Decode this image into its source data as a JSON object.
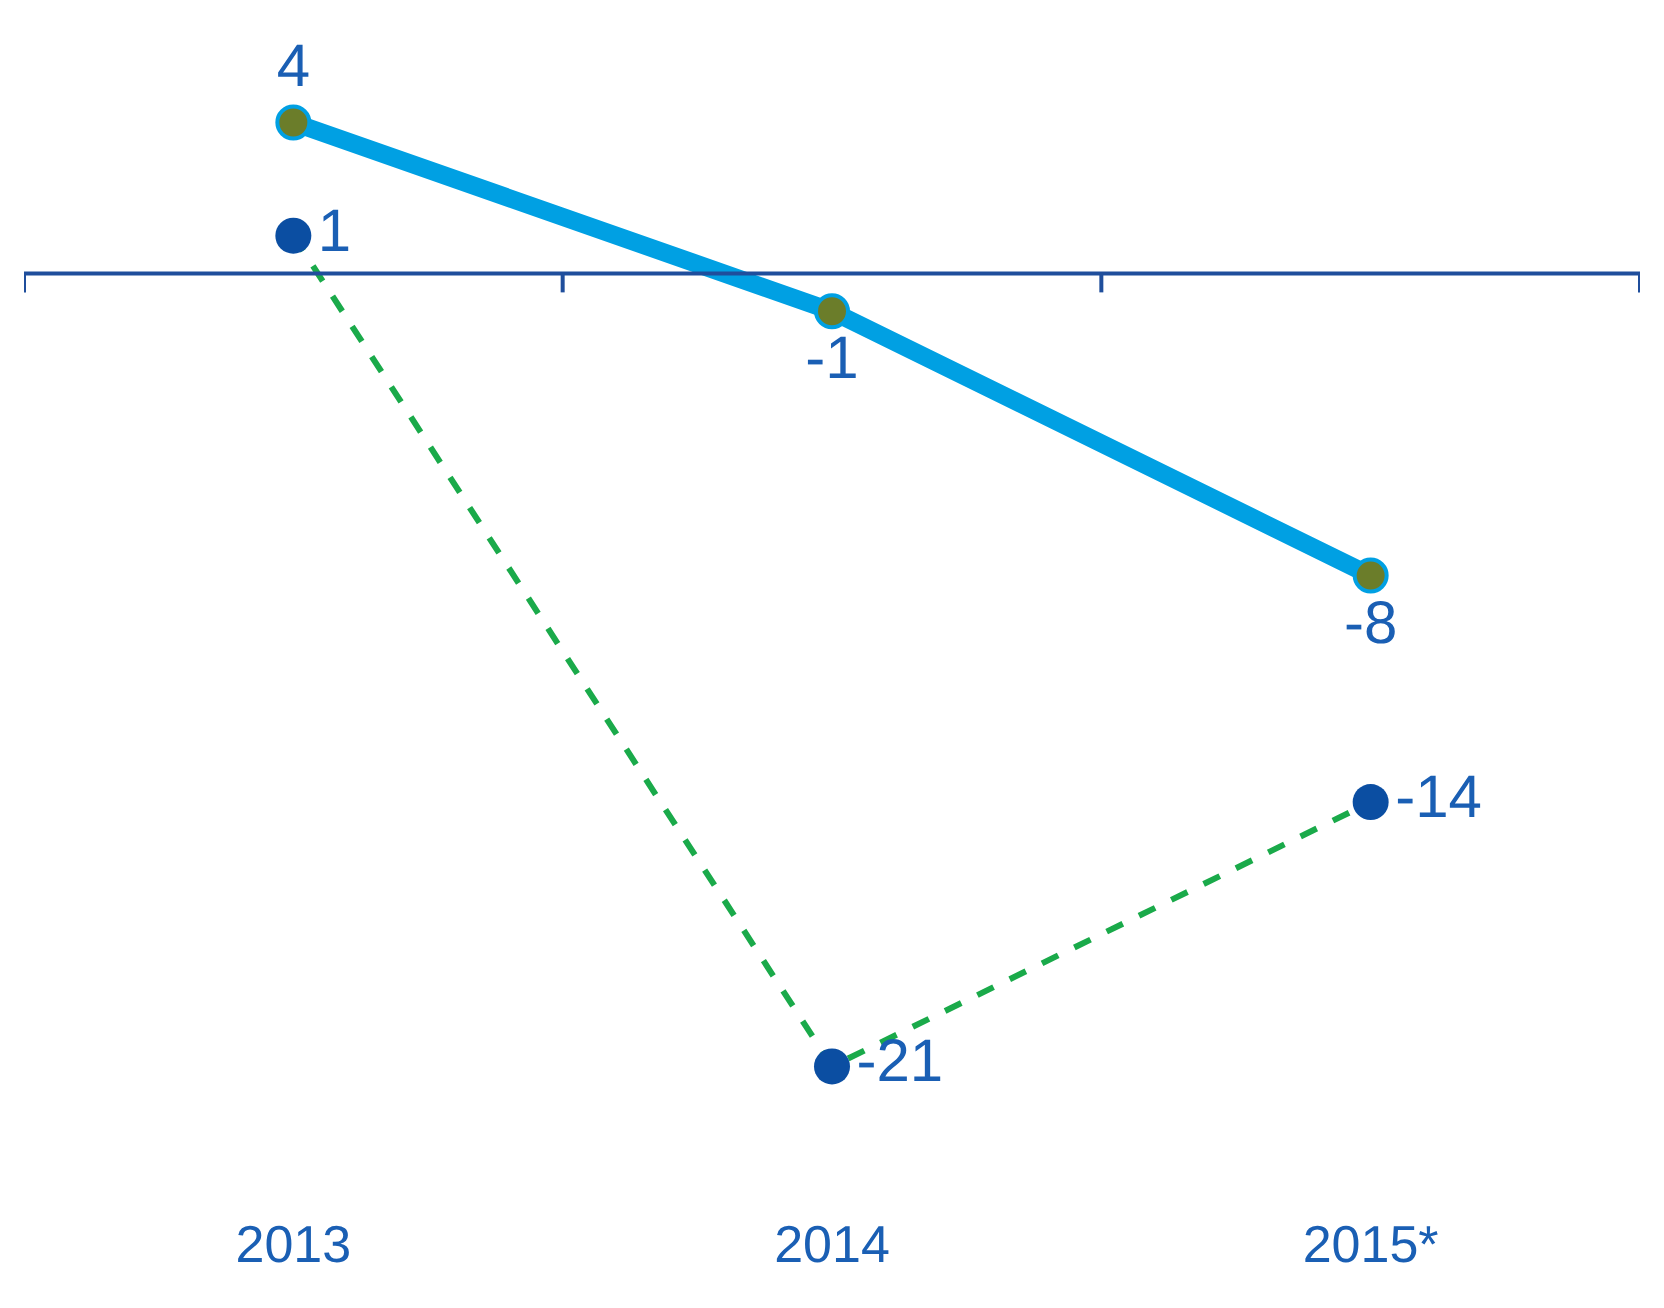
{
  "chart_data": {
    "type": "line",
    "categories": [
      "2013",
      "2014",
      "2015*"
    ],
    "series": [
      {
        "color": "#00a0e3",
        "colors": [
          "#6b7d2a",
          "#6b7d2a",
          "#6b7d2a"
        ],
        "values": [
          4,
          -1,
          -8
        ],
        "line_style": "solid"
      },
      {
        "color": "#1aaa4a",
        "colors": [
          "#0b4ea2",
          "#0b4ea2",
          "#0b4ea2"
        ],
        "values": [
          1,
          -21,
          -14
        ],
        "line_style": "dashed"
      }
    ],
    "ref_lines": [
      {
        "axis": "y",
        "value": 0,
        "color": "#1f4e9c"
      }
    ],
    "data_labels": true,
    "marker": "circle"
  }
}
